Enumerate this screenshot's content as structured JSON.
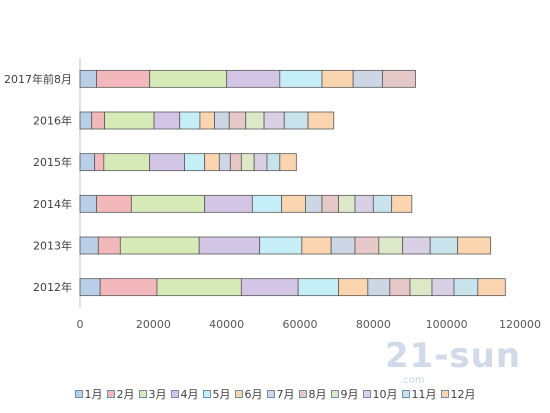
{
  "chart_data": {
    "type": "bar",
    "orientation": "horizontal",
    "stacked": true,
    "categories": [
      "2012年",
      "2013年",
      "2014年",
      "2015年",
      "2016年",
      "2017年前8月"
    ],
    "xlim": [
      0,
      120000
    ],
    "xticks": [
      0,
      20000,
      40000,
      60000,
      80000,
      100000,
      120000
    ],
    "grid": false,
    "legend_position": "bottom",
    "series": [
      {
        "name": "1月",
        "color": "#b9cfe8",
        "values": [
          5500,
          5000,
          4500,
          4000,
          3200,
          4500
        ]
      },
      {
        "name": "2月",
        "color": "#f2b8bb",
        "values": [
          15500,
          6000,
          9500,
          2500,
          3500,
          14500
        ]
      },
      {
        "name": "3月",
        "color": "#d6eab8",
        "values": [
          23000,
          21500,
          20000,
          12500,
          13500,
          21000
        ]
      },
      {
        "name": "4月",
        "color": "#d3c5e6",
        "values": [
          15500,
          16500,
          13000,
          9500,
          7000,
          14500
        ]
      },
      {
        "name": "5月",
        "color": "#c6eef7",
        "values": [
          11000,
          11500,
          8000,
          5500,
          5500,
          11500
        ]
      },
      {
        "name": "6月",
        "color": "#fbd4b0",
        "values": [
          8000,
          8000,
          6500,
          4000,
          4000,
          8500
        ]
      },
      {
        "name": "7月",
        "color": "#ccd6e4",
        "values": [
          6000,
          6500,
          4500,
          3000,
          4000,
          8000
        ]
      },
      {
        "name": "8月",
        "color": "#e6c8c8",
        "values": [
          5500,
          6500,
          4500,
          3000,
          4500,
          9000
        ]
      },
      {
        "name": "9月",
        "color": "#dde8c8",
        "values": [
          6000,
          6500,
          4500,
          3500,
          5000,
          0
        ]
      },
      {
        "name": "10月",
        "color": "#d9d0e6",
        "values": [
          6000,
          7500,
          5000,
          3500,
          5500,
          0
        ]
      },
      {
        "name": "11月",
        "color": "#c8e3ec",
        "values": [
          6500,
          7500,
          5000,
          3500,
          6500,
          0
        ]
      },
      {
        "name": "12月",
        "color": "#fbd4b0",
        "values": [
          7500,
          9000,
          5500,
          4500,
          7000,
          0
        ]
      }
    ]
  },
  "watermark": {
    "main": "21-sun",
    "sub": ".com"
  }
}
